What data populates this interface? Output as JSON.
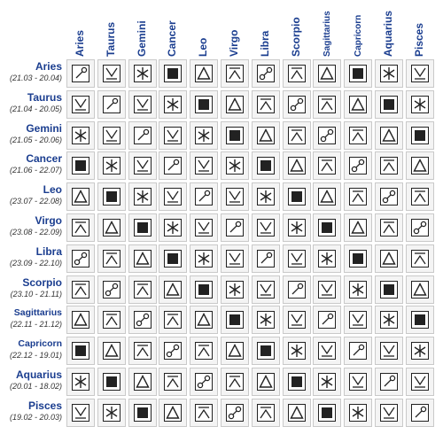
{
  "signs": [
    {
      "name": "Aries",
      "dates": "(21.03 - 20.04)"
    },
    {
      "name": "Taurus",
      "dates": "(21.04 - 20.05)"
    },
    {
      "name": "Gemini",
      "dates": "(21.05 - 20.06)"
    },
    {
      "name": "Cancer",
      "dates": "(21.06 - 22.07)"
    },
    {
      "name": "Leo",
      "dates": "(23.07 - 22.08)"
    },
    {
      "name": "Virgo",
      "dates": "(23.08 - 22.09)"
    },
    {
      "name": "Libra",
      "dates": "(23.09 - 22.10)"
    },
    {
      "name": "Scorpio",
      "dates": "(23.10 - 21.11)"
    },
    {
      "name": "Sagittarius",
      "dates": "(22.11 - 21.12)"
    },
    {
      "name": "Capricorn",
      "dates": "(22.12 - 19.01)"
    },
    {
      "name": "Aquarius",
      "dates": "(20.01 - 18.02)"
    },
    {
      "name": "Pisces",
      "dates": "(19.02 - 20.03)"
    }
  ],
  "aspect_symbols": [
    "conjunction-icon",
    "semi-sextile-icon",
    "sextile-icon",
    "square-icon",
    "trine-icon",
    "quincunx-icon",
    "opposition-icon"
  ],
  "matrix": [
    [
      0,
      1,
      2,
      3,
      4,
      5,
      6,
      5,
      4,
      3,
      2,
      1
    ],
    [
      1,
      0,
      1,
      2,
      3,
      4,
      5,
      6,
      5,
      4,
      3,
      2
    ],
    [
      2,
      1,
      0,
      1,
      2,
      3,
      4,
      5,
      6,
      5,
      4,
      3
    ],
    [
      3,
      2,
      1,
      0,
      1,
      2,
      3,
      4,
      5,
      6,
      5,
      4
    ],
    [
      4,
      3,
      2,
      1,
      0,
      1,
      2,
      3,
      4,
      5,
      6,
      5
    ],
    [
      5,
      4,
      3,
      2,
      1,
      0,
      1,
      2,
      3,
      4,
      5,
      6
    ],
    [
      6,
      5,
      4,
      3,
      2,
      1,
      0,
      1,
      2,
      3,
      4,
      5
    ],
    [
      5,
      6,
      5,
      4,
      3,
      2,
      1,
      0,
      1,
      2,
      3,
      4
    ],
    [
      4,
      5,
      6,
      5,
      4,
      3,
      2,
      1,
      0,
      1,
      2,
      3
    ],
    [
      3,
      4,
      5,
      6,
      5,
      4,
      3,
      2,
      1,
      0,
      1,
      2
    ],
    [
      2,
      3,
      4,
      5,
      6,
      5,
      4,
      3,
      2,
      1,
      0,
      1
    ],
    [
      1,
      2,
      3,
      4,
      5,
      6,
      5,
      4,
      3,
      2,
      1,
      0
    ]
  ],
  "colors": {
    "label": "#1a3d8f",
    "cell_bg": "#f4f4f4",
    "cell_border": "#c9c9c9",
    "symbol": "#222222"
  }
}
